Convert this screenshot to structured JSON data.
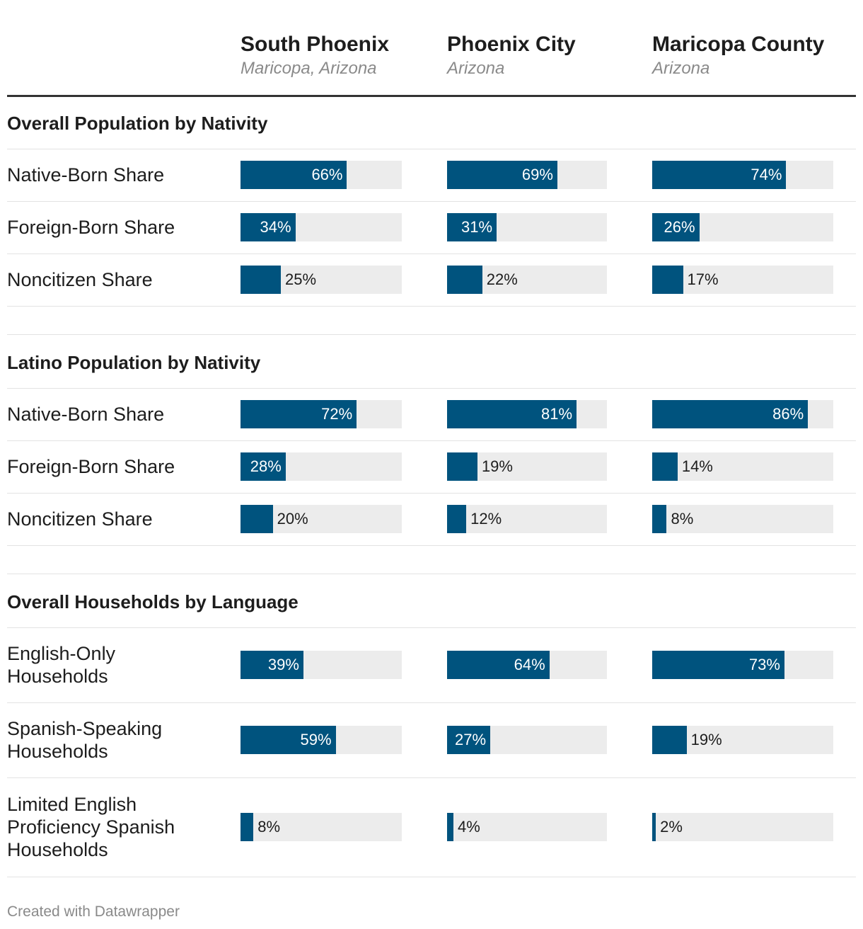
{
  "chart_data": {
    "type": "table",
    "columns": [
      {
        "title": "South Phoenix",
        "subtitle": "Maricopa, Arizona"
      },
      {
        "title": "Phoenix City",
        "subtitle": "Arizona"
      },
      {
        "title": "Maricopa County",
        "subtitle": "Arizona"
      }
    ],
    "sections": [
      {
        "title": "Overall Population by Nativity",
        "rows": [
          {
            "label": "Native-Born Share",
            "values": [
              66,
              69,
              74
            ]
          },
          {
            "label": "Foreign-Born Share",
            "values": [
              34,
              31,
              26
            ]
          },
          {
            "label": "Noncitizen Share",
            "values": [
              25,
              22,
              17
            ]
          }
        ]
      },
      {
        "title": "Latino Population by Nativity",
        "rows": [
          {
            "label": "Native-Born Share",
            "values": [
              72,
              81,
              86
            ]
          },
          {
            "label": "Foreign-Born Share",
            "values": [
              28,
              19,
              14
            ]
          },
          {
            "label": "Noncitizen Share",
            "values": [
              20,
              12,
              8
            ]
          }
        ]
      },
      {
        "title": "Overall Households by Language",
        "rows": [
          {
            "label": "English-Only Households",
            "values": [
              39,
              64,
              73
            ]
          },
          {
            "label": "Spanish-Speaking Households",
            "values": [
              59,
              27,
              19
            ]
          },
          {
            "label": "Limited English Proficiency Spanish Households",
            "values": [
              8,
              4,
              2
            ]
          }
        ]
      }
    ],
    "value_suffix": "%",
    "value_max": 100
  },
  "colors": {
    "bar": "#00537e",
    "track": "#ececec"
  },
  "footer": "Created with Datawrapper"
}
